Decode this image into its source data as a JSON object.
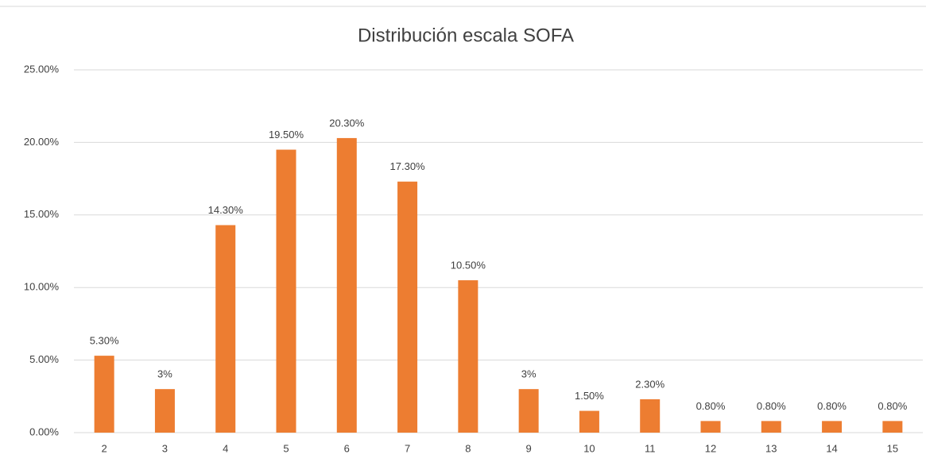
{
  "chart_data": {
    "type": "bar",
    "title": "Distribución escala SOFA",
    "categories": [
      "2",
      "3",
      "4",
      "5",
      "6",
      "7",
      "8",
      "9",
      "10",
      "11",
      "12",
      "13",
      "14",
      "15"
    ],
    "values": [
      5.3,
      3,
      14.3,
      19.5,
      20.3,
      17.3,
      10.5,
      3,
      1.5,
      2.3,
      0.8,
      0.8,
      0.8,
      0.8
    ],
    "value_labels": [
      "5.30%",
      "3%",
      "14.30%",
      "19.50%",
      "20.30%",
      "17.30%",
      "10.50%",
      "3%",
      "1.50%",
      "2.30%",
      "0.80%",
      "0.80%",
      "0.80%",
      "0.80%"
    ],
    "color": "#ed7d31",
    "ylim": [
      0,
      25
    ],
    "yticks": [
      {
        "value": 0,
        "label": "0.00%"
      },
      {
        "value": 5,
        "label": "5.00%"
      },
      {
        "value": 10,
        "label": "10.00%"
      },
      {
        "value": 15,
        "label": "15.00%"
      },
      {
        "value": 20,
        "label": "20.00%"
      },
      {
        "value": 25,
        "label": "25.00%"
      }
    ],
    "grid": true
  }
}
